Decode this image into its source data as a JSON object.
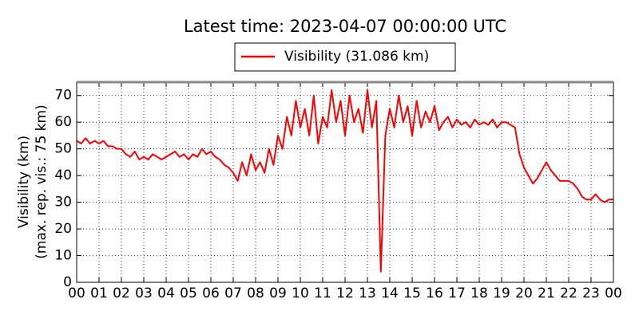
{
  "chart_data": {
    "type": "line",
    "title": "Latest time: 2023-04-07 00:00:00 UTC",
    "ylabel": [
      "Visibility (km)",
      "(max. rep. vis.: 75 km)"
    ],
    "legend_position": "top",
    "grid": true,
    "x": [
      0,
      0.2,
      0.4,
      0.6,
      0.8,
      1,
      1.2,
      1.4,
      1.6,
      1.8,
      2,
      2.2,
      2.4,
      2.6,
      2.8,
      3,
      3.2,
      3.4,
      3.6,
      3.8,
      4,
      4.2,
      4.4,
      4.6,
      4.8,
      5,
      5.2,
      5.4,
      5.6,
      5.8,
      6,
      6.2,
      6.4,
      6.6,
      6.8,
      7,
      7.2,
      7.4,
      7.6,
      7.8,
      8,
      8.2,
      8.4,
      8.6,
      8.8,
      9,
      9.2,
      9.4,
      9.6,
      9.8,
      10,
      10.2,
      10.4,
      10.6,
      10.8,
      11,
      11.2,
      11.4,
      11.6,
      11.8,
      12,
      12.2,
      12.4,
      12.6,
      12.8,
      13,
      13.2,
      13.4,
      13.6,
      13.8,
      14,
      14.2,
      14.4,
      14.6,
      14.8,
      15,
      15.2,
      15.4,
      15.6,
      15.8,
      16,
      16.2,
      16.4,
      16.6,
      16.8,
      17,
      17.2,
      17.4,
      17.6,
      17.8,
      18,
      18.2,
      18.4,
      18.6,
      18.8,
      19,
      19.2,
      19.4,
      19.6,
      19.8,
      20,
      20.2,
      20.4,
      20.6,
      20.8,
      21,
      21.2,
      21.4,
      21.6,
      21.8,
      22,
      22.2,
      22.4,
      22.6,
      22.8,
      23,
      23.2,
      23.4,
      23.6,
      23.8,
      24
    ],
    "series": [
      {
        "name": "Visibility (31.086 km)",
        "color": "#ff0000",
        "values": [
          53,
          52,
          54,
          52,
          53,
          52,
          53,
          51,
          51,
          50,
          50,
          48,
          47,
          49,
          46,
          47,
          46,
          48,
          47,
          46,
          47,
          48,
          49,
          47,
          48,
          46,
          48,
          47,
          50,
          48,
          49,
          47,
          46,
          44,
          43,
          41,
          38,
          45,
          40,
          48,
          42,
          45,
          41,
          50,
          44,
          55,
          50,
          62,
          55,
          68,
          58,
          65,
          55,
          70,
          52,
          62,
          58,
          72,
          60,
          68,
          55,
          70,
          60,
          65,
          56,
          72,
          58,
          68,
          4,
          55,
          65,
          58,
          70,
          60,
          66,
          55,
          68,
          58,
          64,
          60,
          66,
          57,
          60,
          62,
          58,
          61,
          59,
          60,
          58,
          61,
          59,
          60,
          59,
          61,
          58,
          60,
          60,
          59,
          58,
          48,
          43,
          40,
          37,
          39,
          42,
          45,
          42,
          40,
          38,
          38,
          38,
          37,
          35,
          32,
          31,
          31,
          33,
          31,
          30,
          31,
          31.086
        ]
      }
    ],
    "xlim": [
      0,
      24
    ],
    "xticks": [
      {
        "value": 0,
        "label": "00"
      },
      {
        "value": 1,
        "label": "01"
      },
      {
        "value": 2,
        "label": "02"
      },
      {
        "value": 3,
        "label": "03"
      },
      {
        "value": 4,
        "label": "04"
      },
      {
        "value": 5,
        "label": "05"
      },
      {
        "value": 6,
        "label": "06"
      },
      {
        "value": 7,
        "label": "07"
      },
      {
        "value": 8,
        "label": "08"
      },
      {
        "value": 9,
        "label": "09"
      },
      {
        "value": 10,
        "label": "10"
      },
      {
        "value": 11,
        "label": "11"
      },
      {
        "value": 12,
        "label": "12"
      },
      {
        "value": 13,
        "label": "13"
      },
      {
        "value": 14,
        "label": "14"
      },
      {
        "value": 15,
        "label": "15"
      },
      {
        "value": 16,
        "label": "16"
      },
      {
        "value": 17,
        "label": "17"
      },
      {
        "value": 18,
        "label": "18"
      },
      {
        "value": 19,
        "label": "19"
      },
      {
        "value": 20,
        "label": "20"
      },
      {
        "value": 21,
        "label": "21"
      },
      {
        "value": 22,
        "label": "22"
      },
      {
        "value": 23,
        "label": "23"
      },
      {
        "value": 24,
        "label": "00"
      }
    ],
    "ylim": [
      0,
      75
    ],
    "yticks": [
      0,
      10,
      20,
      30,
      40,
      50,
      60,
      70
    ]
  }
}
